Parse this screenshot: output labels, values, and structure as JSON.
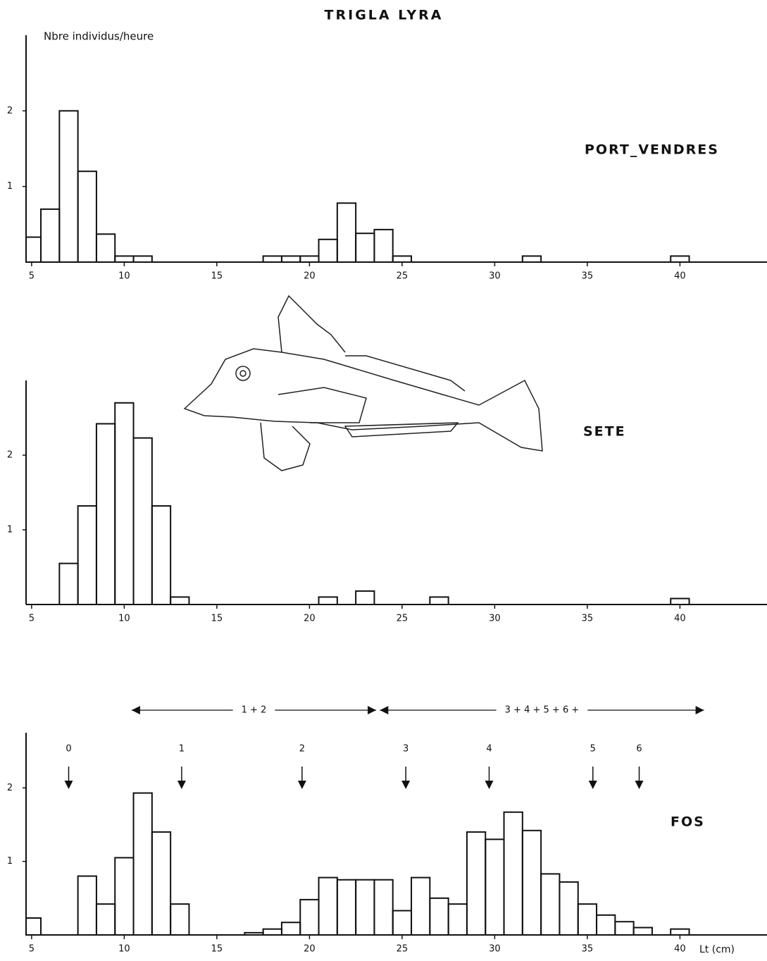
{
  "chart_data": [
    {
      "type": "histogram",
      "title": "TRIGLA LYRA",
      "y_label": "Nbre individus/heure",
      "station": "PORT_VENDRES",
      "bins": [
        4.7,
        5.5,
        6.5,
        7.5,
        8.5,
        9.5,
        10.5,
        11.5,
        12.5,
        13.5,
        14.5,
        15.5,
        16.5,
        17.5,
        18.5,
        19.5,
        20.5,
        21.5,
        22.5,
        23.5,
        24.5,
        25.5,
        26.5,
        27.5,
        28.5,
        29.5,
        30.5,
        31.5,
        32.5,
        33.5,
        34.5,
        35.5,
        36.5,
        37.5,
        38.5,
        39.5,
        40.5,
        41.5
      ],
      "values": [
        0.33,
        0.7,
        2.0,
        1.2,
        0.37,
        0.08,
        0.08,
        0,
        0,
        0,
        0,
        0,
        0,
        0.08,
        0.08,
        0.08,
        0.3,
        0.78,
        0.38,
        0.43,
        0.08,
        0,
        0,
        0,
        0,
        0,
        0,
        0.08,
        0,
        0,
        0,
        0,
        0,
        0,
        0,
        0.08,
        0
      ],
      "color": "#111111",
      "xlim": [
        4.7,
        44.7
      ],
      "xticks": [
        5,
        10,
        15,
        20,
        25,
        30,
        35,
        40
      ],
      "ylim": [
        0,
        3.0
      ],
      "yticks": [
        1,
        2
      ]
    },
    {
      "type": "histogram",
      "station": "SETE",
      "bins": [
        4.7,
        5.5,
        6.5,
        7.5,
        8.5,
        9.5,
        10.5,
        11.5,
        12.5,
        13.5,
        14.5,
        15.5,
        16.5,
        17.5,
        18.5,
        19.5,
        20.5,
        21.5,
        22.5,
        23.5,
        24.5,
        25.5,
        26.5,
        27.5,
        28.5,
        29.5,
        30.5,
        31.5,
        32.5,
        33.5,
        34.5,
        35.5,
        36.5,
        37.5,
        38.5,
        39.5,
        40.5,
        41.5
      ],
      "values": [
        0,
        0,
        0.55,
        1.32,
        2.42,
        2.7,
        2.23,
        1.32,
        0.1,
        0,
        0,
        0,
        0,
        0,
        0,
        0,
        0.1,
        0,
        0.18,
        0,
        0,
        0,
        0.1,
        0,
        0,
        0,
        0,
        0,
        0,
        0,
        0,
        0,
        0,
        0,
        0,
        0.08,
        0
      ],
      "color": "#111111",
      "xlim": [
        4.7,
        44.7
      ],
      "xticks": [
        5,
        10,
        15,
        20,
        25,
        30,
        35,
        40
      ],
      "ylim": [
        0,
        3.0
      ],
      "yticks": [
        1,
        2
      ]
    },
    {
      "type": "histogram",
      "station": "FOS",
      "x_label": "Lt (cm)",
      "bins": [
        4.7,
        5.5,
        6.5,
        7.5,
        8.5,
        9.5,
        10.5,
        11.5,
        12.5,
        13.5,
        14.5,
        15.5,
        16.5,
        17.5,
        18.5,
        19.5,
        20.5,
        21.5,
        22.5,
        23.5,
        24.5,
        25.5,
        26.5,
        27.5,
        28.5,
        29.5,
        30.5,
        31.5,
        32.5,
        33.5,
        34.5,
        35.5,
        36.5,
        37.5,
        38.5,
        39.5,
        40.5,
        41.5
      ],
      "values": [
        0.23,
        0,
        0,
        0.8,
        0.42,
        1.05,
        1.93,
        1.4,
        0.42,
        0,
        0,
        0,
        0.03,
        0.08,
        0.17,
        0.48,
        0.78,
        0.75,
        0.75,
        0.75,
        0.33,
        0.78,
        0.5,
        0.42,
        1.4,
        1.3,
        1.67,
        1.42,
        0.83,
        0.72,
        0.42,
        0.27,
        0.18,
        0.1,
        0,
        0.08,
        0
      ],
      "color": "#111111",
      "xlim": [
        4.7,
        44.7
      ],
      "xticks": [
        5,
        10,
        15,
        20,
        25,
        30,
        35,
        40
      ],
      "ylim": [
        0,
        2.75
      ],
      "yticks": [
        1,
        2
      ],
      "age_markers": [
        {
          "label": "0",
          "x": 7
        },
        {
          "label": "1",
          "x": 13.1
        },
        {
          "label": "2",
          "x": 19.6
        },
        {
          "label": "3",
          "x": 25.2
        },
        {
          "label": "4",
          "x": 29.7
        },
        {
          "label": "5",
          "x": 35.3
        },
        {
          "label": "6",
          "x": 37.8
        }
      ],
      "age_ranges": [
        {
          "label": "1 + 2",
          "x": [
            10.4,
            23.6
          ]
        },
        {
          "label": "3 + 4 + 5 + 6 +",
          "x": [
            23.8,
            41.3
          ]
        }
      ]
    }
  ]
}
